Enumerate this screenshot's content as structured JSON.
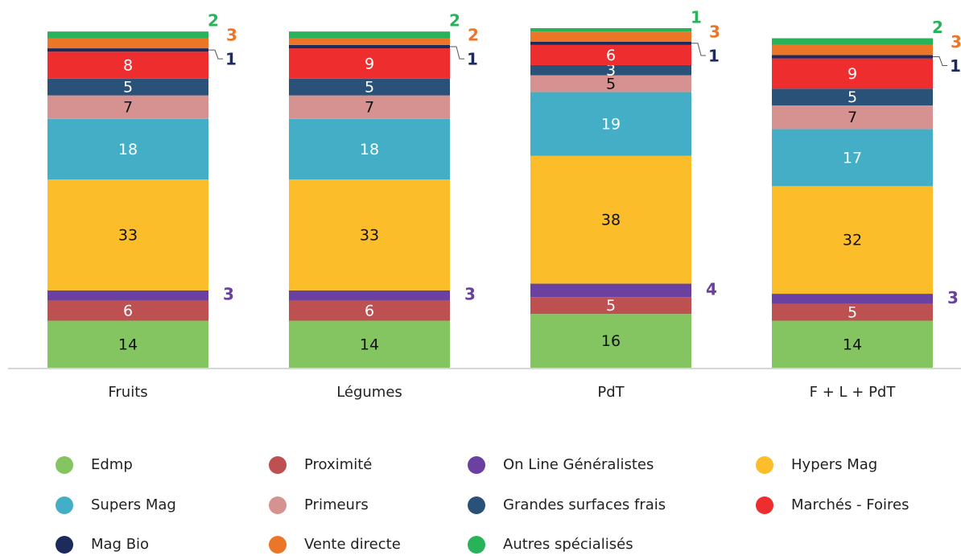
{
  "chart_data": {
    "type": "bar",
    "stacked": true,
    "categories": [
      "Fruits",
      "Légumes",
      "PdT",
      "F + L + PdT"
    ],
    "series": [
      {
        "name": "Edmp",
        "color": "#84c562",
        "values": [
          14,
          14,
          16,
          14
        ]
      },
      {
        "name": "Proximité",
        "color": "#bd5151",
        "values": [
          6,
          6,
          5,
          5
        ]
      },
      {
        "name": "On Line Généralistes",
        "color": "#6a40a0",
        "values": [
          3,
          3,
          4,
          3
        ]
      },
      {
        "name": "Hypers Mag",
        "color": "#fbbe2a",
        "values": [
          33,
          33,
          38,
          32
        ]
      },
      {
        "name": "Supers Mag",
        "color": "#43aec6",
        "values": [
          18,
          18,
          19,
          17
        ]
      },
      {
        "name": "Primeurs",
        "color": "#d69291",
        "values": [
          7,
          7,
          5,
          7
        ]
      },
      {
        "name": "Grandes surfaces frais",
        "color": "#2a5279",
        "values": [
          5,
          5,
          3,
          5
        ]
      },
      {
        "name": "Marchés - Foires",
        "color": "#ee2e2e",
        "values": [
          8,
          9,
          6,
          9
        ]
      },
      {
        "name": "Mag Bio",
        "color": "#1c2a5c",
        "values": [
          1,
          1,
          1,
          1
        ]
      },
      {
        "name": "Vente directe",
        "color": "#ec7628",
        "values": [
          3,
          2,
          3,
          3
        ]
      },
      {
        "name": "Autres spécialisés",
        "color": "#28b35b",
        "values": [
          2,
          2,
          1,
          2
        ]
      }
    ]
  }
}
